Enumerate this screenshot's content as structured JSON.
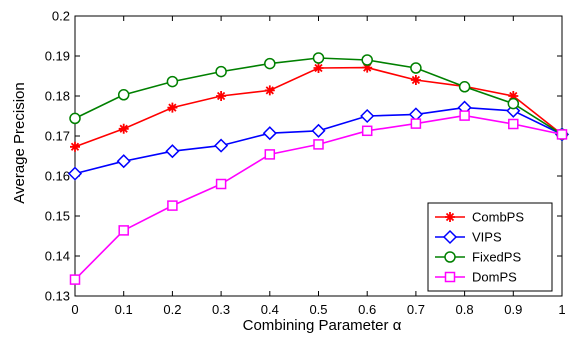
{
  "chart_data": {
    "type": "line",
    "title": "",
    "xlabel": "Combining Parameter α",
    "ylabel": "Average Precision",
    "xlim": [
      0,
      1
    ],
    "ylim": [
      0.13,
      0.2
    ],
    "x": [
      0,
      0.1,
      0.2,
      0.3,
      0.4,
      0.5,
      0.6,
      0.7,
      0.8,
      0.9,
      1
    ],
    "xtick_labels": [
      "0",
      "0.1",
      "0.2",
      "0.3",
      "0.4",
      "0.5",
      "0.6",
      "0.7",
      "0.8",
      "0.9",
      "1"
    ],
    "yticks": [
      0.13,
      0.14,
      0.15,
      0.16,
      0.17,
      0.18,
      0.19,
      0.2
    ],
    "ytick_labels": [
      "0.13",
      "0.14",
      "0.15",
      "0.16",
      "0.17",
      "0.18",
      "0.19",
      "0.2"
    ],
    "grid": false,
    "legend_position": "bottom-right",
    "series": [
      {
        "name": "CombPS",
        "color": "#ff0000",
        "marker": "star",
        "values": [
          0.1673,
          0.1718,
          0.1771,
          0.18,
          0.1814,
          0.187,
          0.1871,
          0.184,
          0.1824,
          0.18,
          0.1704
        ]
      },
      {
        "name": "VIPS",
        "color": "#0000ff",
        "marker": "diamond",
        "values": [
          0.1606,
          0.1637,
          0.1662,
          0.1676,
          0.1707,
          0.1713,
          0.175,
          0.1754,
          0.1771,
          0.1763,
          0.1704
        ]
      },
      {
        "name": "FixedPS",
        "color": "#008000",
        "marker": "circle",
        "values": [
          0.1744,
          0.1803,
          0.1836,
          0.1861,
          0.1881,
          0.1895,
          0.189,
          0.187,
          0.1823,
          0.1781,
          0.1704
        ]
      },
      {
        "name": "DomPS",
        "color": "#ff00ff",
        "marker": "square",
        "values": [
          0.1341,
          0.1464,
          0.1526,
          0.158,
          0.1654,
          0.1679,
          0.1713,
          0.1731,
          0.1751,
          0.173,
          0.1704
        ]
      }
    ]
  }
}
